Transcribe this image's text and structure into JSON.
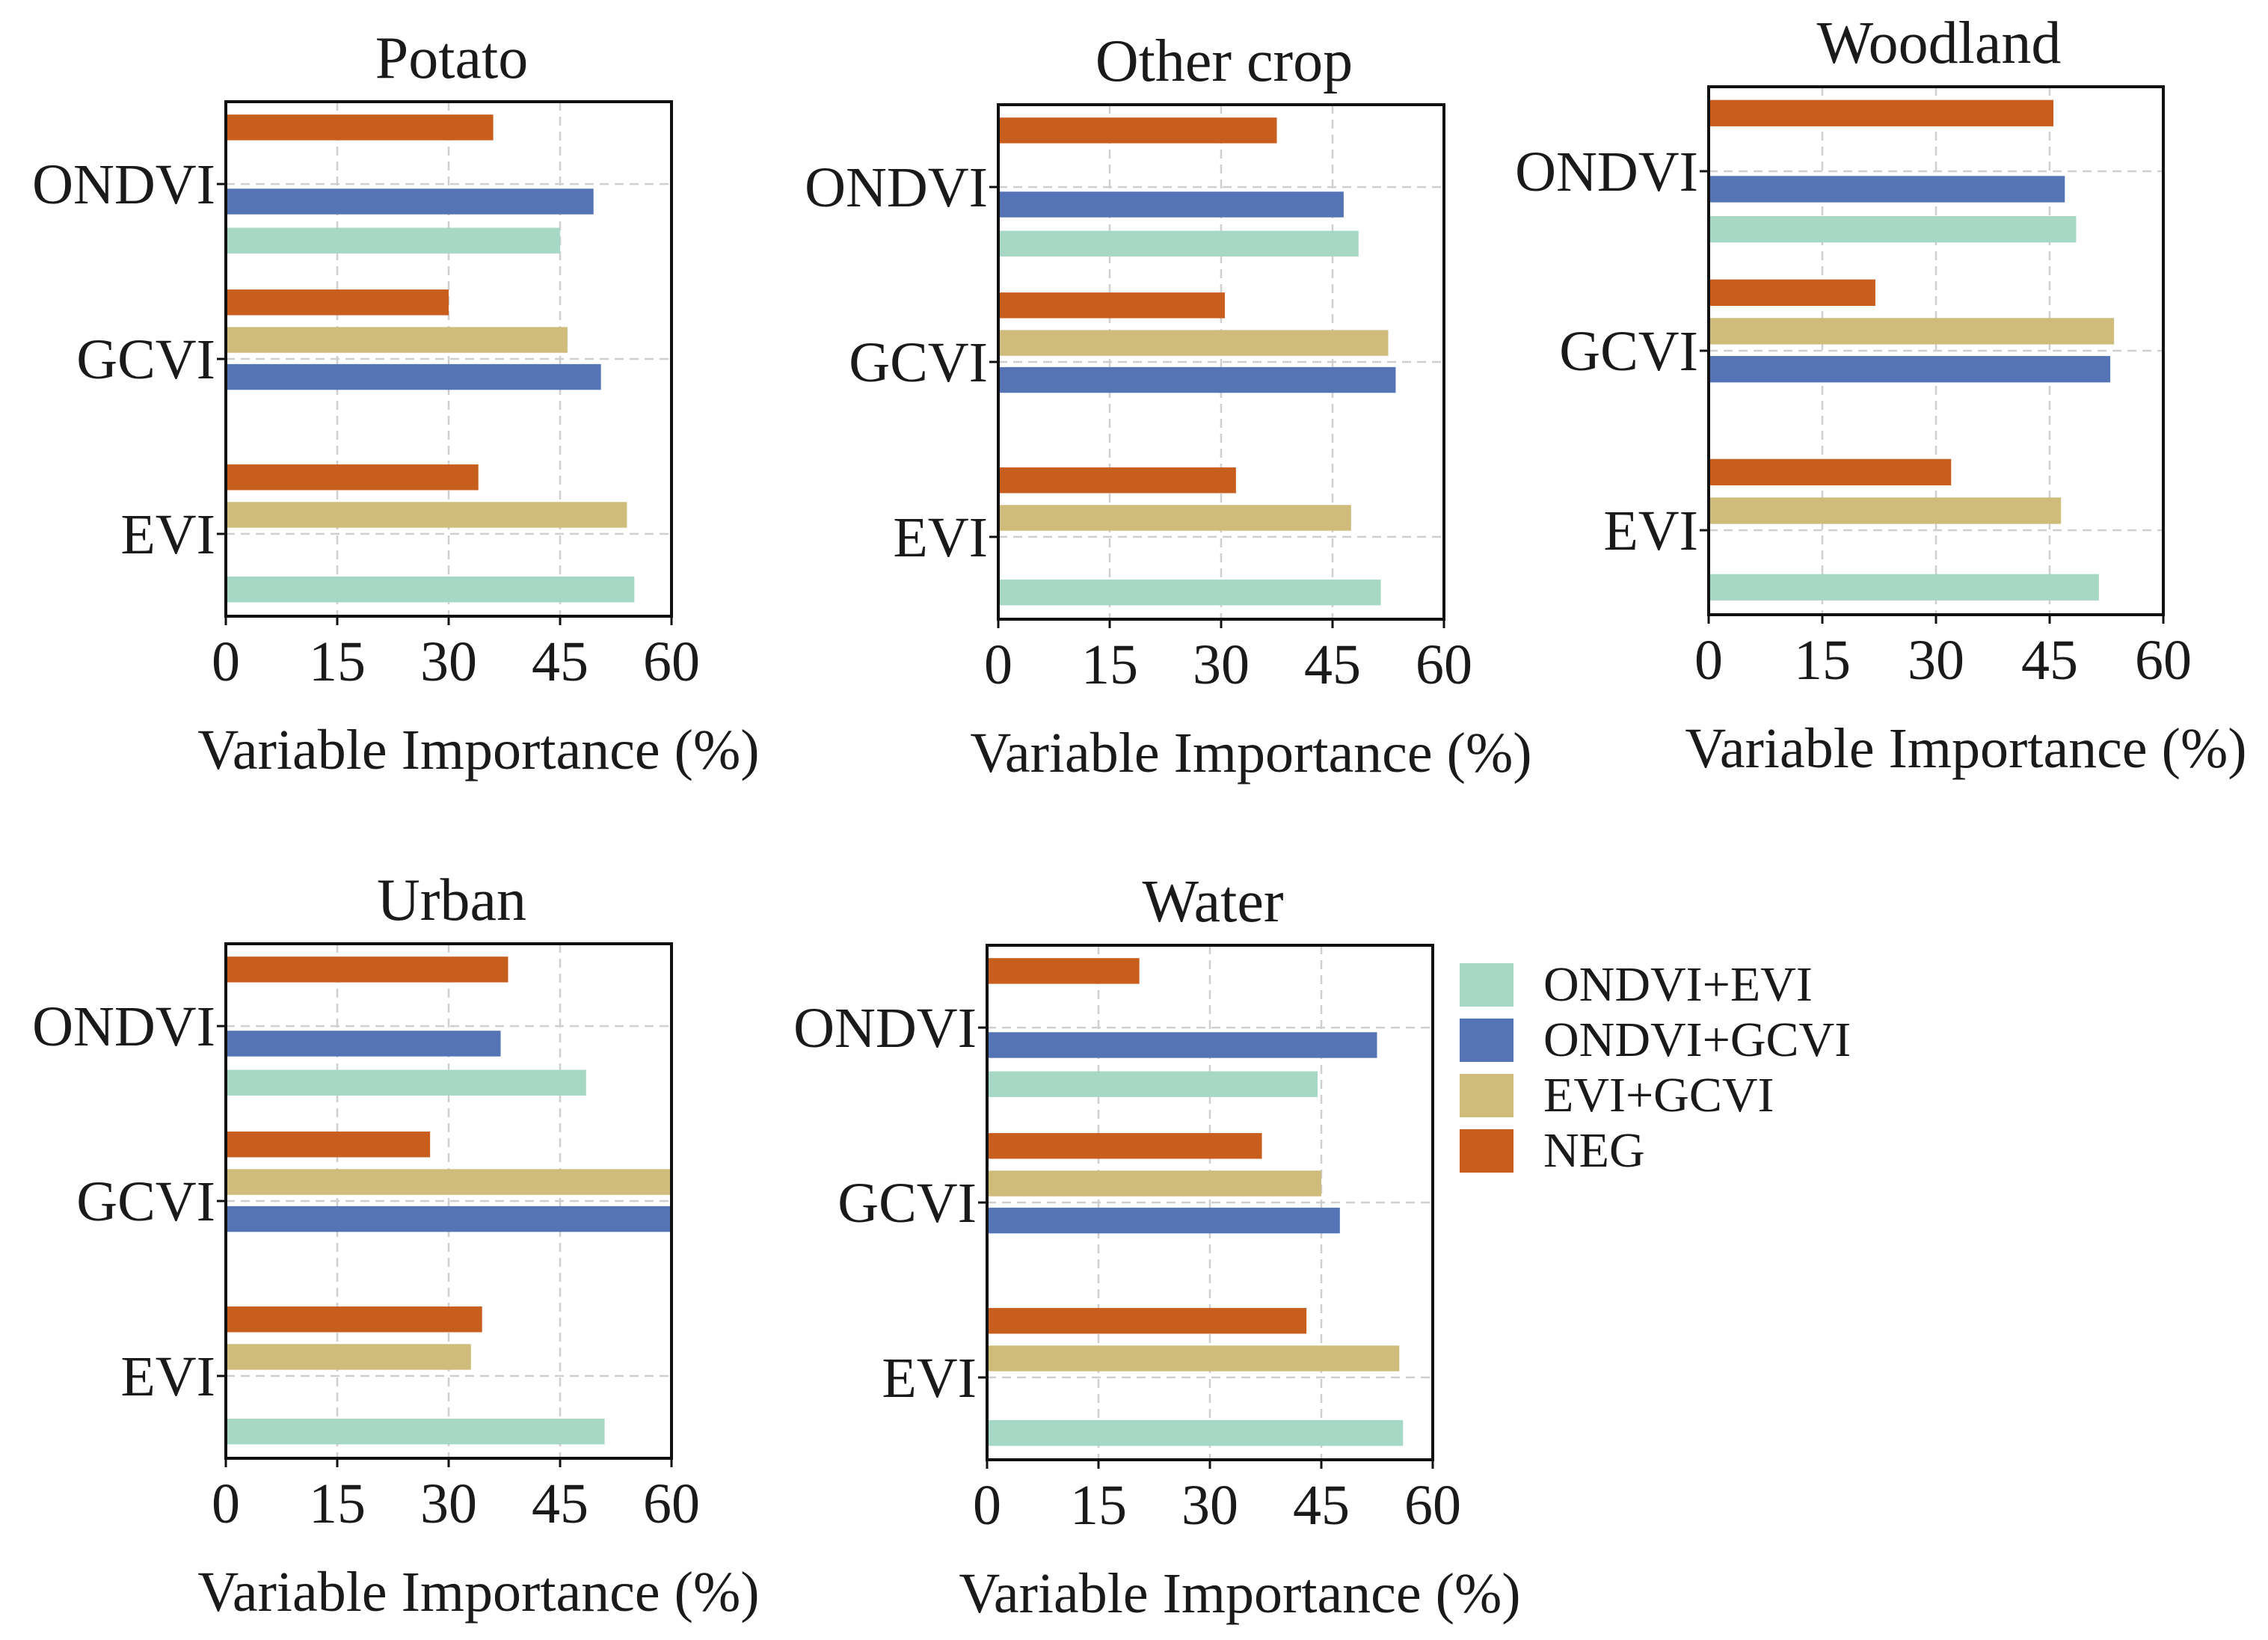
{
  "legend": {
    "entries": [
      "ONDVI+EVI",
      "ONDVI+GCVI",
      "EVI+GCVI",
      "NEG"
    ]
  },
  "colors": {
    "ONDVI+EVI": "#a6d8c5",
    "ONDVI+GCVI": "#5574b5",
    "EVI+GCVI": "#cfbc7b",
    "NEG": "#c85e1d"
  },
  "chart_data": [
    {
      "type": "bar",
      "orientation": "horizontal",
      "title": "Potato",
      "xlabel": "Variable Importance (%)",
      "xlim": [
        0,
        60
      ],
      "xticks": [
        "0",
        "15",
        "30",
        "45",
        "60"
      ],
      "categories": [
        "ONDVI",
        "GCVI",
        "EVI"
      ],
      "series": [
        {
          "name": "NEG",
          "values": [
            36,
            30,
            34
          ]
        },
        {
          "name": "ONDVI+GCVI",
          "values": [
            49.5,
            50.5,
            null
          ]
        },
        {
          "name": "EVI+GCVI",
          "values": [
            null,
            46,
            54
          ]
        },
        {
          "name": "ONDVI+EVI",
          "values": [
            45,
            null,
            55
          ]
        }
      ]
    },
    {
      "type": "bar",
      "orientation": "horizontal",
      "title": "Other crop",
      "xlabel": "Variable Importance (%)",
      "xlim": [
        0,
        60
      ],
      "xticks": [
        "0",
        "15",
        "30",
        "45",
        "60"
      ],
      "categories": [
        "ONDVI",
        "GCVI",
        "EVI"
      ],
      "series": [
        {
          "name": "NEG",
          "values": [
            37.5,
            30.5,
            32
          ]
        },
        {
          "name": "ONDVI+GCVI",
          "values": [
            46.5,
            53.5,
            null
          ]
        },
        {
          "name": "EVI+GCVI",
          "values": [
            null,
            52.5,
            47.5
          ]
        },
        {
          "name": "ONDVI+EVI",
          "values": [
            48.5,
            null,
            51.5
          ]
        }
      ]
    },
    {
      "type": "bar",
      "orientation": "horizontal",
      "title": "Woodland",
      "xlabel": "Variable Importance (%)",
      "xlim": [
        0,
        60
      ],
      "xticks": [
        "0",
        "15",
        "30",
        "45",
        "60"
      ],
      "categories": [
        "ONDVI",
        "GCVI",
        "EVI"
      ],
      "series": [
        {
          "name": "NEG",
          "values": [
            45.5,
            22,
            32
          ]
        },
        {
          "name": "ONDVI+GCVI",
          "values": [
            47,
            53,
            null
          ]
        },
        {
          "name": "EVI+GCVI",
          "values": [
            null,
            53.5,
            46.5
          ]
        },
        {
          "name": "ONDVI+EVI",
          "values": [
            48.5,
            null,
            51.5
          ]
        }
      ]
    },
    {
      "type": "bar",
      "orientation": "horizontal",
      "title": "Urban",
      "xlabel": "Variable Importance (%)",
      "xlim": [
        0,
        60
      ],
      "xticks": [
        "0",
        "15",
        "30",
        "45",
        "60"
      ],
      "categories": [
        "ONDVI",
        "GCVI",
        "EVI"
      ],
      "series": [
        {
          "name": "NEG",
          "values": [
            38,
            27.5,
            34.5
          ]
        },
        {
          "name": "ONDVI+GCVI",
          "values": [
            37,
            60,
            null
          ]
        },
        {
          "name": "EVI+GCVI",
          "values": [
            null,
            60,
            33
          ]
        },
        {
          "name": "ONDVI+EVI",
          "values": [
            48.5,
            null,
            51
          ]
        }
      ]
    },
    {
      "type": "bar",
      "orientation": "horizontal",
      "title": "Water",
      "xlabel": "Variable Importance (%)",
      "xlim": [
        0,
        60
      ],
      "xticks": [
        "0",
        "15",
        "30",
        "45",
        "60"
      ],
      "categories": [
        "ONDVI",
        "GCVI",
        "EVI"
      ],
      "series": [
        {
          "name": "NEG",
          "values": [
            20.5,
            37,
            43
          ]
        },
        {
          "name": "ONDVI+GCVI",
          "values": [
            52.5,
            47.5,
            null
          ]
        },
        {
          "name": "EVI+GCVI",
          "values": [
            null,
            45,
            55.5
          ]
        },
        {
          "name": "ONDVI+EVI",
          "values": [
            44.5,
            null,
            56
          ]
        }
      ]
    }
  ]
}
